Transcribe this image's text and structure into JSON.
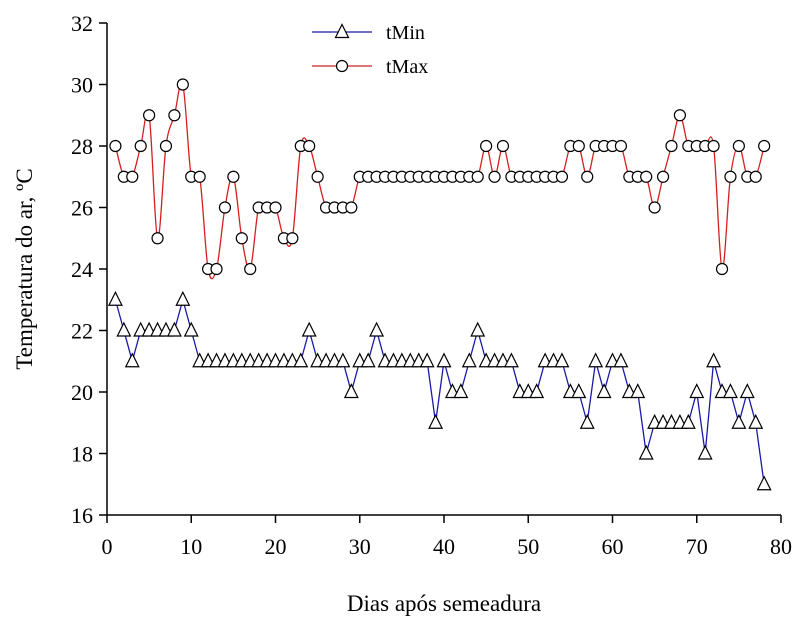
{
  "chart_data": {
    "type": "line",
    "xlabel": "Dias após semeadura",
    "ylabel": "Temperatura do ar, ºC",
    "xlim": [
      0,
      80
    ],
    "ylim": [
      16,
      32
    ],
    "xticks": [
      0,
      10,
      20,
      30,
      40,
      50,
      60,
      70,
      80
    ],
    "yticks": [
      16,
      18,
      20,
      22,
      24,
      26,
      28,
      30,
      32
    ],
    "grid": false,
    "legend_position": "top-center",
    "x": [
      1,
      2,
      3,
      4,
      5,
      6,
      7,
      8,
      9,
      10,
      11,
      12,
      13,
      14,
      15,
      16,
      17,
      18,
      19,
      20,
      21,
      22,
      23,
      24,
      25,
      26,
      27,
      28,
      29,
      30,
      31,
      32,
      33,
      34,
      35,
      36,
      37,
      38,
      39,
      40,
      41,
      42,
      43,
      44,
      45,
      46,
      47,
      48,
      49,
      50,
      51,
      52,
      53,
      54,
      55,
      56,
      57,
      58,
      59,
      60,
      61,
      62,
      63,
      64,
      65,
      66,
      67,
      68,
      69,
      70,
      71,
      72,
      73,
      74,
      75,
      76,
      77,
      78
    ],
    "series": [
      {
        "name": "tMin",
        "color": "#1a1aa6",
        "marker": "triangle",
        "values": [
          23,
          22,
          21,
          22,
          22,
          22,
          22,
          22,
          23,
          22,
          21,
          21,
          21,
          21,
          21,
          21,
          21,
          21,
          21,
          21,
          21,
          21,
          21,
          22,
          21,
          21,
          21,
          21,
          20,
          21,
          21,
          22,
          21,
          21,
          21,
          21,
          21,
          21,
          19,
          21,
          20,
          20,
          21,
          22,
          21,
          21,
          21,
          21,
          20,
          20,
          20,
          21,
          21,
          21,
          20,
          20,
          19,
          21,
          20,
          21,
          21,
          20,
          20,
          18,
          19,
          19,
          19,
          19,
          19,
          20,
          18,
          21,
          20,
          20,
          19,
          20,
          19,
          17
        ]
      },
      {
        "name": "tMax",
        "color": "#d42020",
        "marker": "circle",
        "values": [
          28,
          27,
          27,
          28,
          29,
          25,
          28,
          29,
          30,
          27,
          27,
          24,
          24,
          26,
          27,
          25,
          24,
          26,
          26,
          26,
          25,
          25,
          28,
          28,
          27,
          26,
          26,
          26,
          26,
          27,
          27,
          27,
          27,
          27,
          27,
          27,
          27,
          27,
          27,
          27,
          27,
          27,
          27,
          27,
          28,
          27,
          28,
          27,
          27,
          27,
          27,
          27,
          27,
          27,
          28,
          28,
          27,
          28,
          28,
          28,
          28,
          27,
          27,
          27,
          26,
          27,
          28,
          29,
          28,
          28,
          28,
          28,
          24,
          27,
          28,
          27,
          27,
          28
        ]
      }
    ]
  }
}
